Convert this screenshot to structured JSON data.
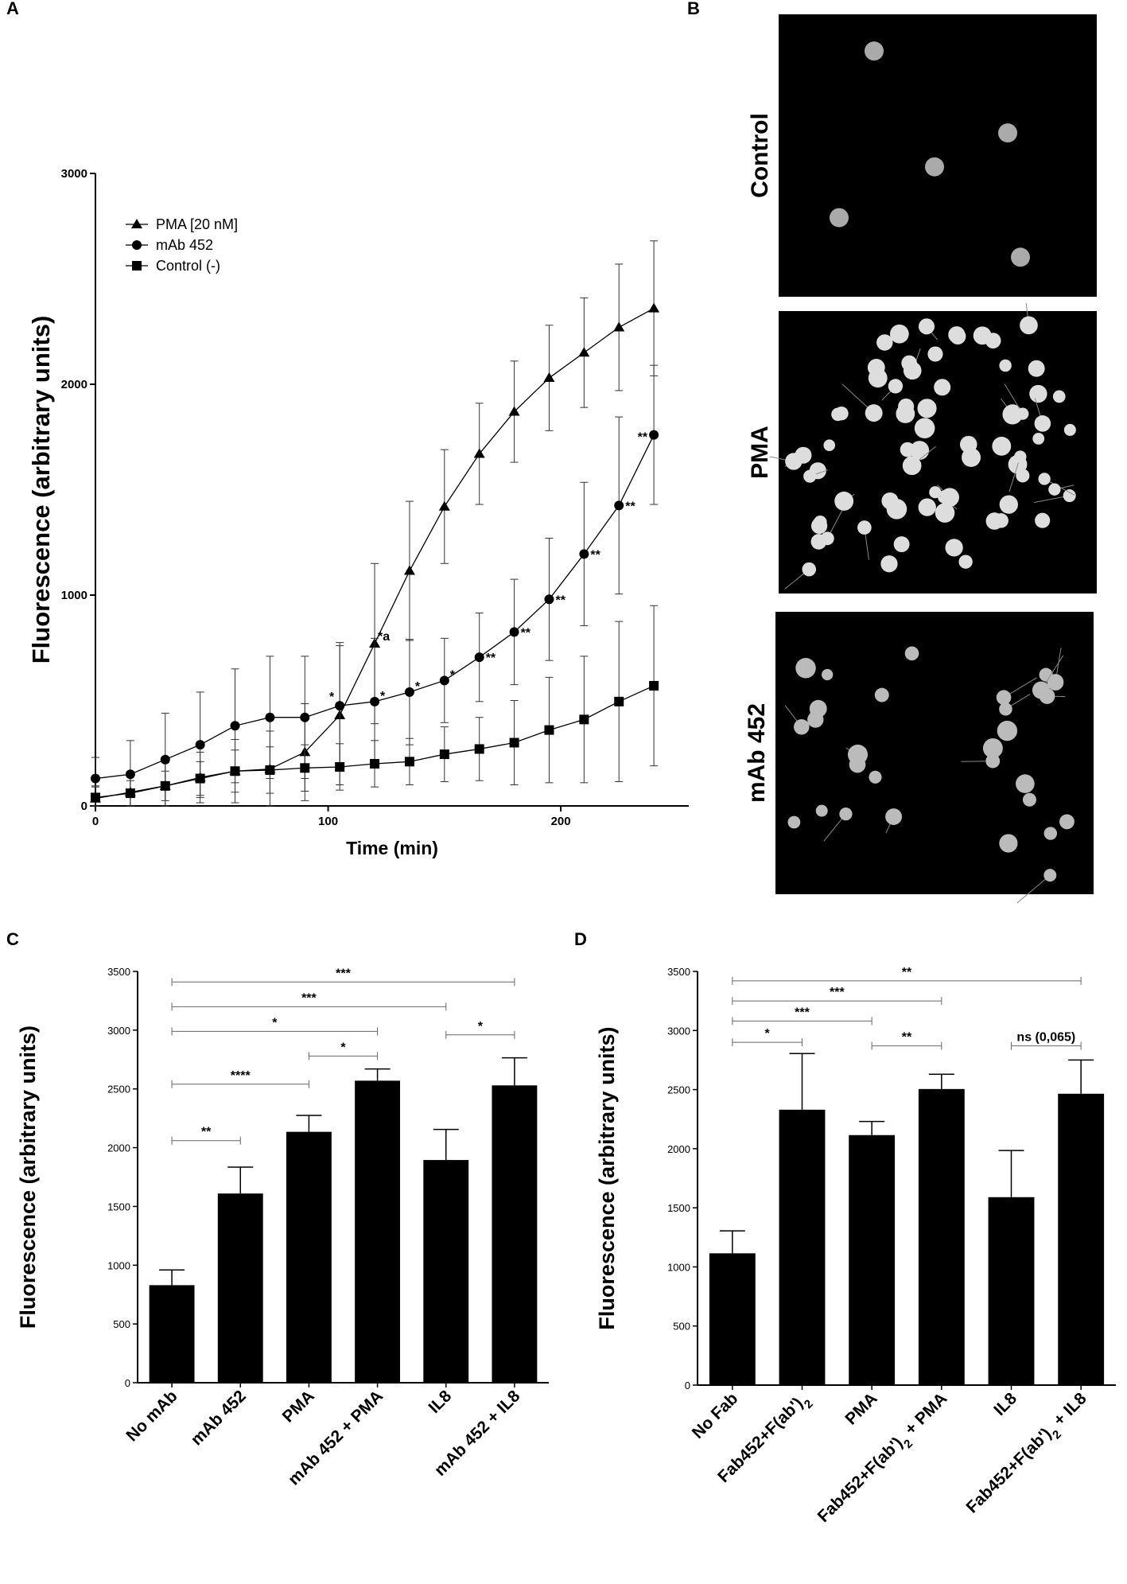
{
  "panels": {
    "A": "A",
    "B": "B",
    "C": "C",
    "D": "D"
  },
  "chart_data": [
    {
      "id": "A",
      "type": "line",
      "title": "",
      "xlabel": "Time (min)",
      "ylabel": "Fluorescence (arbitrary units)",
      "xlim": [
        0,
        255
      ],
      "ylim": [
        0,
        3000
      ],
      "xticks": [
        0,
        100,
        200
      ],
      "yticks": [
        0,
        1000,
        2000,
        3000
      ],
      "legend_position": "top-left",
      "series": [
        {
          "name": "PMA [20 nM]",
          "marker": "triangle",
          "x": [
            0,
            15,
            30,
            45,
            60,
            75,
            90,
            105,
            120,
            135,
            150,
            165,
            180,
            195,
            210,
            225,
            240
          ],
          "y": [
            35,
            65,
            95,
            135,
            165,
            175,
            255,
            430,
            770,
            1115,
            1420,
            1670,
            1870,
            2030,
            2150,
            2270,
            2360
          ],
          "err": [
            60,
            80,
            110,
            120,
            150,
            180,
            230,
            330,
            380,
            330,
            270,
            240,
            240,
            250,
            260,
            300,
            320
          ],
          "annotations": [
            {
              "x": 120,
              "text": "*a"
            }
          ]
        },
        {
          "name": "mAb 452",
          "marker": "circle",
          "x": [
            0,
            15,
            30,
            45,
            60,
            75,
            90,
            105,
            120,
            135,
            150,
            165,
            180,
            195,
            210,
            225,
            240
          ],
          "y": [
            130,
            150,
            220,
            290,
            380,
            420,
            420,
            475,
            495,
            540,
            595,
            705,
            825,
            980,
            1195,
            1425,
            1760
          ],
          "err": [
            100,
            160,
            220,
            250,
            270,
            290,
            290,
            300,
            300,
            250,
            200,
            210,
            250,
            290,
            340,
            420,
            330
          ],
          "annotations": [
            {
              "x": 105,
              "text": "*"
            },
            {
              "x": 120,
              "text": "*"
            },
            {
              "x": 135,
              "text": "*"
            },
            {
              "x": 150,
              "text": "*"
            },
            {
              "x": 165,
              "text": "**"
            },
            {
              "x": 180,
              "text": "**"
            },
            {
              "x": 195,
              "text": "**"
            },
            {
              "x": 210,
              "text": "**"
            },
            {
              "x": 225,
              "text": "**"
            },
            {
              "x": 240,
              "text": "**"
            }
          ]
        },
        {
          "name": "Control (-)",
          "marker": "square",
          "x": [
            0,
            15,
            30,
            45,
            60,
            75,
            90,
            105,
            120,
            135,
            150,
            165,
            180,
            195,
            210,
            225,
            240
          ],
          "y": [
            40,
            60,
            95,
            130,
            165,
            170,
            180,
            185,
            200,
            210,
            245,
            270,
            300,
            360,
            410,
            495,
            570
          ],
          "err": [
            50,
            60,
            70,
            80,
            100,
            110,
            110,
            110,
            110,
            110,
            130,
            150,
            200,
            250,
            300,
            380,
            380
          ]
        }
      ]
    },
    {
      "id": "C",
      "type": "bar",
      "title": "",
      "xlabel": "",
      "ylabel": "Fluorescence (arbitrary units)",
      "ylim": [
        0,
        3500
      ],
      "yticks": [
        0,
        500,
        1000,
        1500,
        2000,
        2500,
        3000,
        3500
      ],
      "categories": [
        "No mAb",
        "mAb 452",
        "PMA",
        "mAb 452 + PMA",
        "IL8",
        "mAb 452 + IL8"
      ],
      "values": [
        830,
        1610,
        2135,
        2570,
        1895,
        2530
      ],
      "errors": [
        130,
        225,
        140,
        100,
        260,
        235
      ],
      "significance": [
        {
          "from": 0,
          "to": 1,
          "label": "**",
          "y": 2060
        },
        {
          "from": 0,
          "to": 2,
          "label": "****",
          "y": 2540
        },
        {
          "from": 2,
          "to": 3,
          "label": "*",
          "y": 2780
        },
        {
          "from": 0,
          "to": 3,
          "label": "*",
          "y": 2990
        },
        {
          "from": 0,
          "to": 4,
          "label": "***",
          "y": 3200
        },
        {
          "from": 0,
          "to": 5,
          "label": "***",
          "y": 3410
        },
        {
          "from": 4,
          "to": 5,
          "label": "*",
          "y": 2960
        }
      ]
    },
    {
      "id": "D",
      "type": "bar",
      "title": "",
      "xlabel": "",
      "ylabel": "Fluorescence (arbitrary units)",
      "ylim": [
        0,
        3500
      ],
      "yticks": [
        0,
        500,
        1000,
        1500,
        2000,
        2500,
        3000,
        3500
      ],
      "categories": [
        "No Fab",
        "Fab452+F(ab')2",
        "PMA",
        "Fab452+F(ab')2 + PMA",
        "IL8",
        "Fab452+F(ab')2 + IL8"
      ],
      "values": [
        1115,
        2330,
        2115,
        2505,
        1590,
        2465
      ],
      "errors": [
        190,
        475,
        115,
        125,
        395,
        285
      ],
      "significance": [
        {
          "from": 0,
          "to": 1,
          "label": "*",
          "y": 2900
        },
        {
          "from": 0,
          "to": 2,
          "label": "***",
          "y": 3080
        },
        {
          "from": 2,
          "to": 3,
          "label": "**",
          "y": 2870
        },
        {
          "from": 0,
          "to": 3,
          "label": "***",
          "y": 3250
        },
        {
          "from": 0,
          "to": 5,
          "label": "**",
          "y": 3420
        },
        {
          "from": 4,
          "to": 5,
          "label": "ns (0,065)",
          "y": 2870
        }
      ]
    }
  ],
  "micrographs": [
    {
      "label": "Control"
    },
    {
      "label": "PMA"
    },
    {
      "label": "mAb 452"
    }
  ]
}
